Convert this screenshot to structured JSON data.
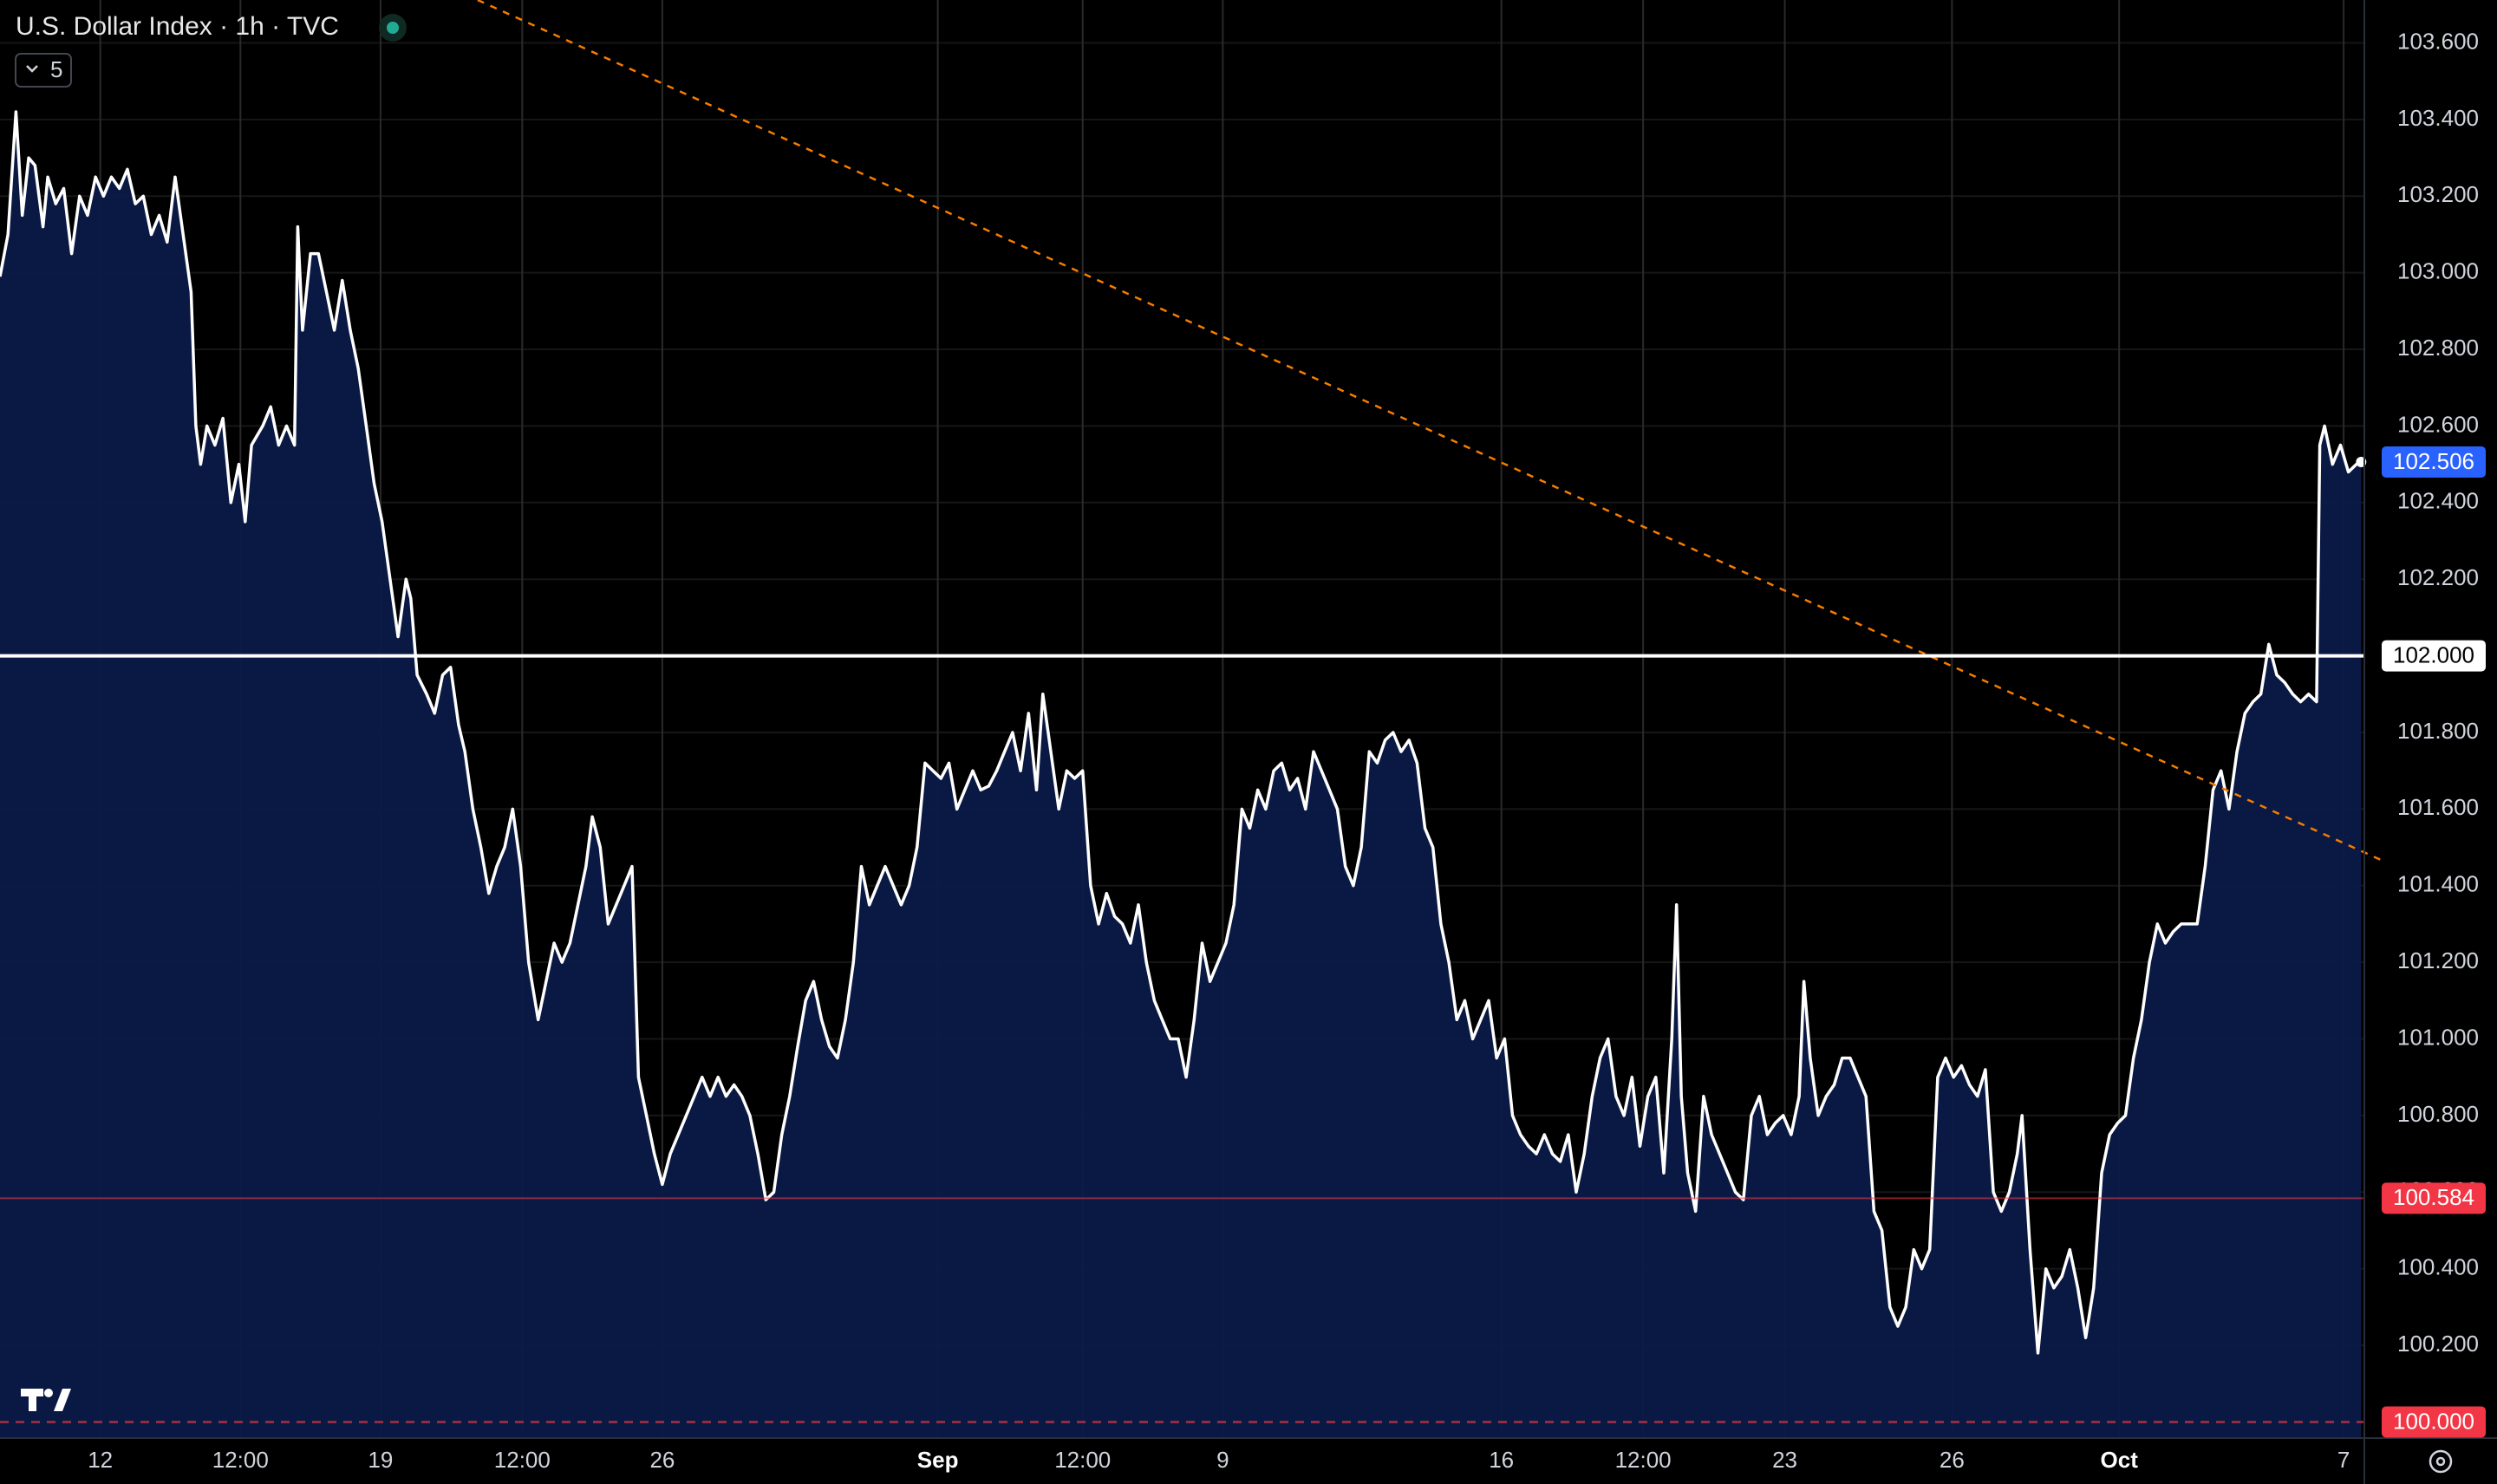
{
  "chart_data": {
    "type": "area",
    "title": "U.S. Dollar Index · 1h · TVC",
    "badge": "5",
    "color": "#ffffff",
    "fill_color": "#0b1a48",
    "xlim": [
      0,
      1485
    ],
    "ylim": [
      99.958,
      103.712
    ],
    "grid": true,
    "xticks": [
      {
        "value": 63,
        "label": "12"
      },
      {
        "value": 151,
        "label": "12:00"
      },
      {
        "value": 239,
        "label": "19"
      },
      {
        "value": 328,
        "label": "12:00"
      },
      {
        "value": 416,
        "label": "26"
      },
      {
        "value": 589,
        "label": "Sep"
      },
      {
        "value": 680,
        "label": "12:00"
      },
      {
        "value": 768,
        "label": "9"
      },
      {
        "value": 943,
        "label": "16"
      },
      {
        "value": 1032,
        "label": "12:00"
      },
      {
        "value": 1121,
        "label": "23"
      },
      {
        "value": 1226,
        "label": "26"
      },
      {
        "value": 1331,
        "label": "Oct"
      },
      {
        "value": 1472,
        "label": "7"
      }
    ],
    "yticks": [
      {
        "value": 100.0,
        "label": "100.000"
      },
      {
        "value": 100.2,
        "label": "100.200"
      },
      {
        "value": 100.4,
        "label": "100.400"
      },
      {
        "value": 100.6,
        "label": "100.600"
      },
      {
        "value": 100.8,
        "label": "100.800"
      },
      {
        "value": 101.0,
        "label": "101.000"
      },
      {
        "value": 101.2,
        "label": "101.200"
      },
      {
        "value": 101.4,
        "label": "101.400"
      },
      {
        "value": 101.6,
        "label": "101.600"
      },
      {
        "value": 101.8,
        "label": "101.800"
      },
      {
        "value": 102.0,
        "label": "102.000"
      },
      {
        "value": 102.2,
        "label": "102.200"
      },
      {
        "value": 102.4,
        "label": "102.400"
      },
      {
        "value": 102.6,
        "label": "102.600"
      },
      {
        "value": 102.8,
        "label": "102.800"
      },
      {
        "value": 103.0,
        "label": "103.000"
      },
      {
        "value": 103.2,
        "label": "103.200"
      },
      {
        "value": 103.4,
        "label": "103.400"
      },
      {
        "value": 103.6,
        "label": "103.600"
      }
    ],
    "price_lines": [
      {
        "value": 102.0,
        "label": "102.000",
        "color": "#ffffff",
        "text_color": "#000000",
        "style": "solid"
      },
      {
        "value": 100.584,
        "label": "100.584",
        "color": "#f23645",
        "text_color": "#ffffff",
        "style": "thin"
      },
      {
        "value": 100.0,
        "label": "100.000",
        "color": "#f23645",
        "text_color": "#ffffff",
        "style": "dashed"
      },
      {
        "value": 102.506,
        "label": "102.506",
        "color": "#2962ff",
        "text_color": "#ffffff",
        "style": "none"
      }
    ],
    "trendline": {
      "x": [
        300,
        1495
      ],
      "values": [
        103.712,
        101.468
      ],
      "color": "#f57c00"
    },
    "x": [
      0,
      5,
      10,
      14,
      18,
      22,
      27,
      30,
      35,
      40,
      45,
      50,
      55,
      60,
      65,
      70,
      75,
      80,
      85,
      90,
      95,
      100,
      105,
      110,
      115,
      120,
      123,
      126,
      130,
      135,
      140,
      145,
      150,
      154,
      158,
      165,
      170,
      175,
      180,
      185,
      187,
      190,
      195,
      200,
      205,
      210,
      215,
      220,
      225,
      230,
      235,
      240,
      245,
      250,
      255,
      258,
      262,
      268,
      273,
      278,
      283,
      288,
      292,
      297,
      302,
      307,
      312,
      317,
      322,
      327,
      332,
      338,
      343,
      348,
      353,
      358,
      363,
      368,
      372,
      377,
      382,
      387,
      392,
      397,
      401,
      406,
      411,
      416,
      421,
      426,
      431,
      436,
      441,
      446,
      451,
      456,
      461,
      466,
      471,
      476,
      481,
      486,
      491,
      496,
      501,
      506,
      511,
      516,
      521,
      526,
      531,
      536,
      541,
      546,
      551,
      556,
      561,
      566,
      571,
      576,
      581,
      586,
      591,
      596,
      601,
      606,
      611,
      616,
      621,
      626,
      631,
      636,
      641,
      646,
      651,
      655,
      660,
      665,
      670,
      675,
      680,
      685,
      690,
      695,
      700,
      705,
      710,
      715,
      720,
      725,
      730,
      735,
      740,
      745,
      750,
      755,
      760,
      765,
      770,
      775,
      780,
      785,
      790,
      795,
      800,
      805,
      810,
      815,
      820,
      825,
      830,
      835,
      840,
      845,
      850,
      855,
      860,
      865,
      870,
      875,
      880,
      885,
      890,
      895,
      900,
      905,
      910,
      915,
      920,
      925,
      930,
      935,
      940,
      945,
      950,
      955,
      960,
      965,
      970,
      975,
      980,
      985,
      990,
      995,
      1000,
      1005,
      1010,
      1015,
      1020,
      1025,
      1030,
      1035,
      1040,
      1045,
      1050,
      1053,
      1056,
      1060,
      1065,
      1070,
      1075,
      1080,
      1085,
      1090,
      1095,
      1100,
      1105,
      1110,
      1115,
      1120,
      1125,
      1130,
      1133,
      1137,
      1142,
      1147,
      1152,
      1157,
      1162,
      1167,
      1172,
      1177,
      1182,
      1187,
      1192,
      1197,
      1202,
      1207,
      1212,
      1217,
      1222,
      1227,
      1232,
      1237,
      1242,
      1247,
      1252,
      1257,
      1262,
      1267,
      1270,
      1275,
      1280,
      1285,
      1290,
      1295,
      1300,
      1305,
      1310,
      1315,
      1320,
      1325,
      1330,
      1335,
      1340,
      1345,
      1350,
      1355,
      1360,
      1365,
      1370,
      1375,
      1380,
      1385,
      1390,
      1395,
      1400,
      1405,
      1410,
      1415,
      1420,
      1425,
      1430,
      1435,
      1440,
      1445,
      1450,
      1455,
      1457,
      1460,
      1465,
      1470,
      1475,
      1480,
      1483
    ],
    "values": [
      102.99,
      103.1,
      103.42,
      103.15,
      103.3,
      103.28,
      103.12,
      103.25,
      103.18,
      103.22,
      103.05,
      103.2,
      103.15,
      103.25,
      103.2,
      103.25,
      103.22,
      103.27,
      103.18,
      103.2,
      103.1,
      103.15,
      103.08,
      103.25,
      103.1,
      102.95,
      102.6,
      102.5,
      102.6,
      102.55,
      102.62,
      102.4,
      102.5,
      102.35,
      102.55,
      102.6,
      102.65,
      102.55,
      102.6,
      102.55,
      103.12,
      102.85,
      103.05,
      103.05,
      102.95,
      102.85,
      102.98,
      102.85,
      102.75,
      102.6,
      102.45,
      102.35,
      102.2,
      102.05,
      102.2,
      102.15,
      101.95,
      101.9,
      101.85,
      101.95,
      101.97,
      101.82,
      101.75,
      101.6,
      101.5,
      101.38,
      101.45,
      101.5,
      101.6,
      101.45,
      101.2,
      101.05,
      101.15,
      101.25,
      101.2,
      101.25,
      101.35,
      101.45,
      101.58,
      101.5,
      101.3,
      101.35,
      101.4,
      101.45,
      100.9,
      100.8,
      100.7,
      100.62,
      100.7,
      100.75,
      100.8,
      100.85,
      100.9,
      100.85,
      100.9,
      100.85,
      100.88,
      100.85,
      100.8,
      100.7,
      100.58,
      100.6,
      100.75,
      100.85,
      100.98,
      101.1,
      101.15,
      101.05,
      100.98,
      100.95,
      101.05,
      101.2,
      101.45,
      101.35,
      101.4,
      101.45,
      101.4,
      101.35,
      101.4,
      101.5,
      101.72,
      101.7,
      101.68,
      101.72,
      101.6,
      101.65,
      101.7,
      101.65,
      101.66,
      101.7,
      101.75,
      101.8,
      101.7,
      101.85,
      101.65,
      101.9,
      101.75,
      101.6,
      101.7,
      101.68,
      101.7,
      101.4,
      101.3,
      101.38,
      101.32,
      101.3,
      101.25,
      101.35,
      101.2,
      101.1,
      101.05,
      101.0,
      101.0,
      100.9,
      101.05,
      101.25,
      101.15,
      101.2,
      101.25,
      101.35,
      101.6,
      101.55,
      101.65,
      101.6,
      101.7,
      101.72,
      101.65,
      101.68,
      101.6,
      101.75,
      101.7,
      101.65,
      101.6,
      101.45,
      101.4,
      101.5,
      101.75,
      101.72,
      101.78,
      101.8,
      101.75,
      101.78,
      101.72,
      101.55,
      101.5,
      101.3,
      101.2,
      101.05,
      101.1,
      101.0,
      101.05,
      101.1,
      100.95,
      101.0,
      100.8,
      100.75,
      100.72,
      100.7,
      100.75,
      100.7,
      100.68,
      100.75,
      100.6,
      100.7,
      100.85,
      100.95,
      101.0,
      100.85,
      100.8,
      100.9,
      100.72,
      100.85,
      100.9,
      100.65,
      101.0,
      101.35,
      100.85,
      100.65,
      100.55,
      100.85,
      100.75,
      100.7,
      100.65,
      100.6,
      100.58,
      100.8,
      100.85,
      100.75,
      100.78,
      100.8,
      100.75,
      100.85,
      101.15,
      100.95,
      100.8,
      100.85,
      100.88,
      100.95,
      100.95,
      100.9,
      100.85,
      100.55,
      100.5,
      100.3,
      100.25,
      100.3,
      100.45,
      100.4,
      100.45,
      100.9,
      100.95,
      100.9,
      100.93,
      100.88,
      100.85,
      100.92,
      100.6,
      100.55,
      100.6,
      100.7,
      100.8,
      100.45,
      100.18,
      100.4,
      100.35,
      100.38,
      100.45,
      100.35,
      100.22,
      100.35,
      100.65,
      100.75,
      100.78,
      100.8,
      100.95,
      101.05,
      101.2,
      101.3,
      101.25,
      101.28,
      101.3,
      101.3,
      101.3,
      101.45,
      101.65,
      101.7,
      101.6,
      101.75,
      101.85,
      101.88,
      101.9,
      102.03,
      101.95,
      101.93,
      101.9,
      101.88,
      101.9,
      101.88,
      102.55,
      102.6,
      102.5,
      102.55,
      102.48,
      102.5,
      102.506
    ]
  }
}
